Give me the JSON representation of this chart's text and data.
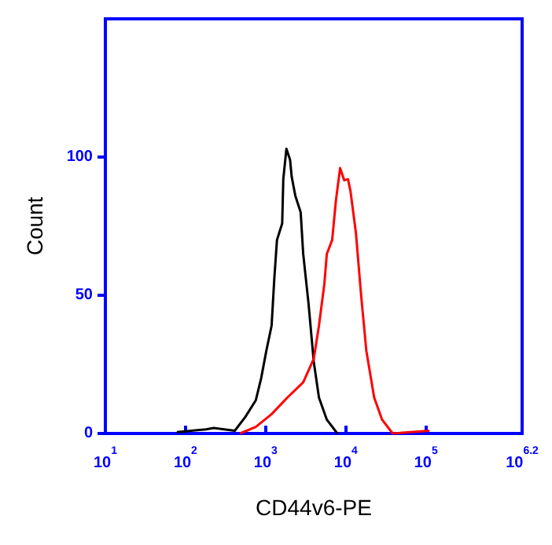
{
  "chart_data": {
    "type": "line",
    "xlabel": "CD44v6-PE",
    "ylabel": "Count",
    "log": "x",
    "grid": false,
    "marker": "none",
    "line_style": "solid",
    "xlim": [
      10,
      1584893
    ],
    "xticks": [
      {
        "value": 10,
        "label": "10$^{1}$"
      },
      {
        "value": 100,
        "label": "10$^{2}$"
      },
      {
        "value": 1000,
        "label": "10$^{3}$"
      },
      {
        "value": 10000,
        "label": "10$^{4}$"
      },
      {
        "value": 100000,
        "label": "10$^{5}$"
      },
      {
        "value": 1584893,
        "label": "10$^{6.2}$"
      }
    ],
    "ylim": [
      0,
      150
    ],
    "yticks": [
      0,
      50,
      100
    ],
    "series": [
      {
        "color": "#000000",
        "x": [
          78,
          180,
          225,
          412,
          558,
          753,
          879,
          1021,
          1186,
          1282,
          1384,
          1608,
          1660,
          1816,
          2017,
          2110,
          2344,
          2735,
          2940,
          3428,
          3981,
          4624,
          5800,
          7850
        ],
        "values": [
          0.5,
          1.5,
          2,
          1,
          6,
          12,
          20,
          30,
          39,
          56,
          70,
          76,
          92,
          103,
          99,
          93,
          86,
          80,
          65,
          47,
          26,
          13,
          5,
          0
        ]
      },
      {
        "color": "#ff0000",
        "x": [
          479,
          753,
          1186,
          1866,
          2940,
          3981,
          4624,
          5395,
          5800,
          6760,
          7510,
          8490,
          9550,
          10650,
          11450,
          13370,
          15530,
          18030,
          22600,
          28380,
          38460,
          110700
        ],
        "values": [
          0,
          2.4,
          7,
          13,
          18.5,
          27,
          39,
          54,
          65,
          70,
          84,
          96,
          91.6,
          92,
          87.6,
          72.6,
          50,
          30,
          13,
          5,
          0,
          1
        ]
      }
    ]
  }
}
